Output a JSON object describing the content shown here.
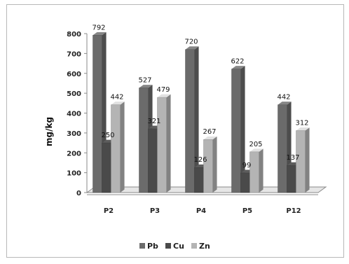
{
  "chart_data": {
    "type": "bar",
    "ylabel": "mg/kg",
    "categories": [
      "P2",
      "P3",
      "P4",
      "P5",
      "P12"
    ],
    "series": [
      {
        "name": "Pb",
        "values": [
          792,
          527,
          720,
          622,
          442
        ],
        "color": "#6b6b6b"
      },
      {
        "name": "Cu",
        "values": [
          250,
          321,
          126,
          99,
          137
        ],
        "color": "#4a4a4a"
      },
      {
        "name": "Zn",
        "values": [
          442,
          479,
          267,
          205,
          312
        ],
        "color": "#b4b4b4"
      }
    ],
    "ylim": [
      0,
      800
    ],
    "yticks": [
      0,
      100,
      200,
      300,
      400,
      500,
      600,
      700,
      800
    ],
    "grid": false,
    "legend_position": "bottom"
  }
}
